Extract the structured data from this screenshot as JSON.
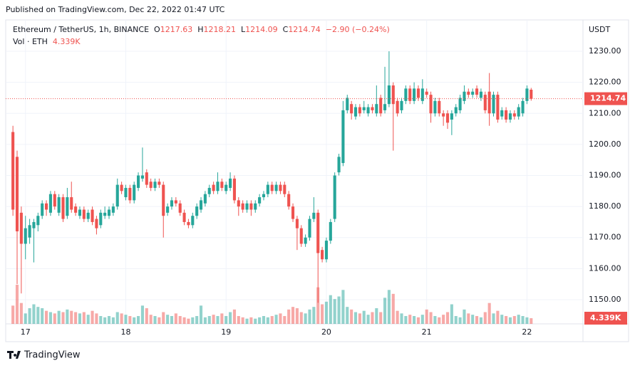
{
  "header": {
    "published": "Published on TradingView.com, Dec 22, 2022 01:47 UTC"
  },
  "footer": {
    "brand": "TradingView"
  },
  "chart_data": {
    "type": "candlestick",
    "symbol": "Ethereum / TetherUS, 1h, BINANCE",
    "ohlc_labels": [
      "O",
      "H",
      "L",
      "C"
    ],
    "change": "−2.90 (−0.24%)",
    "volume_title": "Vol · ETH",
    "y_unit": "USDT",
    "up_color": "#26a69a",
    "down_color": "#ef5350",
    "ylim": [
      1142.2,
      1240.1
    ],
    "yticks": [
      {
        "value": 1150,
        "label": "1150.00"
      },
      {
        "value": 1160,
        "label": "1160.00"
      },
      {
        "value": 1170,
        "label": "1170.00"
      },
      {
        "value": 1180,
        "label": "1180.00"
      },
      {
        "value": 1190,
        "label": "1190.00"
      },
      {
        "value": 1200,
        "label": "1200.00"
      },
      {
        "value": 1210,
        "label": "1210.00"
      },
      {
        "value": 1220,
        "label": "1220.00"
      },
      {
        "value": 1230,
        "label": "1230.00"
      }
    ],
    "xlim": [
      19.27,
      157.4
    ],
    "xticks": [
      {
        "value": 24,
        "label": "17"
      },
      {
        "value": 48,
        "label": "18"
      },
      {
        "value": 72,
        "label": "19"
      },
      {
        "value": 96,
        "label": "20"
      },
      {
        "value": 120,
        "label": "21"
      },
      {
        "value": 144,
        "label": "22"
      }
    ],
    "grid": true,
    "x": [
      21,
      22,
      23,
      24,
      25,
      26,
      27,
      28,
      29,
      30,
      31,
      32,
      33,
      34,
      35,
      36,
      37,
      38,
      39,
      40,
      41,
      42,
      43,
      44,
      45,
      46,
      47,
      48,
      49,
      50,
      51,
      52,
      53,
      54,
      55,
      56,
      57,
      58,
      59,
      60,
      61,
      62,
      63,
      64,
      65,
      66,
      67,
      68,
      69,
      70,
      71,
      72,
      73,
      74,
      75,
      76,
      77,
      78,
      79,
      80,
      81,
      82,
      83,
      84,
      85,
      86,
      87,
      88,
      89,
      90,
      91,
      92,
      93,
      94,
      95,
      96,
      97,
      98,
      99,
      100,
      101,
      102,
      103,
      104,
      105,
      106,
      107,
      108,
      109,
      110,
      111,
      112,
      113,
      114,
      115,
      116,
      117,
      118,
      119,
      120,
      121,
      122,
      123,
      124,
      125,
      126,
      127,
      128,
      129,
      130,
      131,
      132,
      133,
      134,
      135,
      136,
      137,
      138,
      139,
      140,
      141,
      142,
      143,
      144,
      145
    ],
    "open": [
      1204,
      1196,
      1178,
      1168,
      1170,
      1173,
      1174,
      1177,
      1181,
      1178,
      1184,
      1178,
      1183,
      1177,
      1183,
      1180,
      1177,
      1179,
      1176,
      1179,
      1176,
      1174,
      1177,
      1177,
      1178,
      1180,
      1187,
      1183,
      1186,
      1182,
      1186,
      1189,
      1191,
      1188,
      1186,
      1188,
      1187,
      1178,
      1180,
      1182,
      1181,
      1178,
      1175,
      1174,
      1177,
      1179,
      1181,
      1184,
      1187,
      1185,
      1188,
      1185,
      1186,
      1189,
      1182,
      1181,
      1179,
      1181,
      1179,
      1181,
      1183,
      1184,
      1187,
      1185,
      1187,
      1187,
      1184,
      1180,
      1176,
      1173,
      1168,
      1170,
      1176,
      1178,
      1166,
      1163,
      1169,
      1176,
      1191,
      1194,
      1211,
      1213,
      1209,
      1212,
      1211,
      1210,
      1212,
      1210,
      1215,
      1211,
      1213,
      1219,
      1214,
      1211,
      1214,
      1218,
      1214,
      1218,
      1214,
      1217,
      1216,
      1210,
      1214,
      1210,
      1210,
      1208,
      1210,
      1211,
      1214,
      1217,
      1216,
      1218,
      1215,
      1216,
      1217,
      1210,
      1216,
      1209,
      1211,
      1208,
      1210,
      1209,
      1210,
      1214,
      1217.63
    ],
    "high": [
      1206,
      1198,
      1180,
      1177,
      1176,
      1176,
      1178,
      1182,
      1182,
      1185,
      1185,
      1184,
      1184,
      1186,
      1188,
      1181,
      1180,
      1180,
      1179,
      1180,
      1177,
      1179,
      1180,
      1180,
      1181,
      1189,
      1188,
      1187,
      1187,
      1188,
      1191,
      1199,
      1192,
      1189,
      1189,
      1189,
      1188,
      1181,
      1183,
      1183,
      1182,
      1179,
      1176,
      1178,
      1181,
      1183,
      1185,
      1187,
      1188,
      1191,
      1189,
      1188,
      1191,
      1190,
      1183,
      1182,
      1182,
      1182,
      1182,
      1184,
      1185,
      1188,
      1188,
      1188,
      1188,
      1188,
      1185,
      1181,
      1177,
      1174,
      1171,
      1177,
      1183,
      1179,
      1167,
      1170,
      1176,
      1191,
      1197,
      1214,
      1216,
      1214,
      1213,
      1213,
      1214,
      1213,
      1213,
      1219,
      1216,
      1225,
      1230,
      1220,
      1215,
      1215,
      1219,
      1219,
      1220,
      1219,
      1221,
      1218,
      1217,
      1215,
      1215,
      1211,
      1211,
      1211,
      1213,
      1216,
      1219,
      1218,
      1218,
      1219,
      1218,
      1217,
      1223,
      1217,
      1217,
      1212,
      1212,
      1211,
      1211,
      1213,
      1215,
      1219,
      1218.21
    ],
    "low": [
      1177,
      1155,
      1152,
      1163,
      1168,
      1162,
      1172,
      1176,
      1177,
      1177,
      1179,
      1177,
      1175,
      1176,
      1178,
      1177,
      1176,
      1175,
      1175,
      1174,
      1171,
      1173,
      1176,
      1176,
      1177,
      1179,
      1184,
      1182,
      1181,
      1181,
      1185,
      1188,
      1186,
      1185,
      1185,
      1186,
      1170,
      1177,
      1179,
      1180,
      1177,
      1174,
      1173,
      1173,
      1176,
      1178,
      1180,
      1183,
      1184,
      1184,
      1185,
      1184,
      1185,
      1181,
      1177,
      1178,
      1178,
      1177,
      1178,
      1180,
      1182,
      1183,
      1184,
      1184,
      1184,
      1183,
      1179,
      1175,
      1166,
      1167,
      1167,
      1169,
      1175,
      1149,
      1162,
      1162,
      1168,
      1175,
      1190,
      1193,
      1210,
      1208,
      1208,
      1209,
      1210,
      1209,
      1210,
      1209,
      1209,
      1210,
      1212,
      1198,
      1209,
      1210,
      1213,
      1213,
      1213,
      1214,
      1213,
      1215,
      1207,
      1209,
      1209,
      1206,
      1205,
      1203,
      1209,
      1210,
      1213,
      1215,
      1215,
      1215,
      1214,
      1210,
      1206,
      1209,
      1207,
      1208,
      1207,
      1207,
      1208,
      1208,
      1209,
      1213,
      1214.09
    ],
    "close": [
      1179,
      1172,
      1168,
      1173,
      1174,
      1175,
      1177,
      1181,
      1179,
      1184,
      1180,
      1183,
      1176,
      1183,
      1179,
      1178,
      1179,
      1176,
      1178,
      1175,
      1173,
      1178,
      1178,
      1179,
      1180,
      1187,
      1185,
      1186,
      1182,
      1187,
      1190,
      1190,
      1187,
      1186,
      1188,
      1187,
      1177,
      1180,
      1182,
      1181,
      1178,
      1175,
      1174,
      1177,
      1180,
      1182,
      1184,
      1186,
      1185,
      1188,
      1186,
      1187,
      1189,
      1182,
      1180,
      1179,
      1181,
      1179,
      1181,
      1183,
      1184,
      1187,
      1185,
      1187,
      1185,
      1184,
      1180,
      1176,
      1173,
      1168,
      1170,
      1176,
      1178,
      1165,
      1163,
      1169,
      1175,
      1190,
      1196,
      1211,
      1215,
      1210,
      1212,
      1210,
      1212,
      1212,
      1211,
      1213,
      1210,
      1213,
      1219,
      1213,
      1210,
      1214,
      1218,
      1214,
      1218,
      1215,
      1218,
      1216,
      1210,
      1214,
      1210,
      1209,
      1207,
      1210,
      1212,
      1215,
      1217,
      1216,
      1217,
      1216,
      1217,
      1211,
      1210,
      1216,
      1208,
      1211,
      1208,
      1210,
      1209,
      1212,
      1214,
      1218,
      1214.74
    ],
    "volume": [
      14000,
      30000,
      16000,
      8000,
      12000,
      15000,
      13000,
      12000,
      10000,
      9000,
      8000,
      10000,
      9000,
      11000,
      10000,
      9000,
      8000,
      9000,
      7000,
      10000,
      8000,
      6000,
      5000,
      6000,
      5000,
      9000,
      8000,
      7000,
      6000,
      5000,
      6000,
      14000,
      12000,
      7000,
      6000,
      5000,
      9000,
      7000,
      6000,
      8000,
      6000,
      5000,
      4000,
      5000,
      6000,
      14000,
      5000,
      6000,
      7000,
      6000,
      8000,
      6000,
      9000,
      11000,
      6000,
      5000,
      4000,
      5000,
      4000,
      5000,
      6000,
      5000,
      6000,
      7000,
      8000,
      6000,
      11000,
      13000,
      12000,
      9000,
      8000,
      11000,
      13000,
      28000,
      15000,
      17000,
      22000,
      19000,
      21000,
      26000,
      13000,
      11000,
      9000,
      8000,
      10000,
      7000,
      9000,
      12000,
      9000,
      20000,
      26000,
      23000,
      10000,
      8000,
      6000,
      7000,
      6000,
      5000,
      7000,
      11000,
      9000,
      6000,
      5000,
      7000,
      9000,
      15000,
      6000,
      5000,
      11000,
      8000,
      7000,
      6000,
      5000,
      9000,
      16000,
      8000,
      10000,
      7000,
      6000,
      5000,
      6000,
      7000,
      6000,
      5000,
      4339
    ],
    "value_labels": {
      "volume_last": "4.339K"
    }
  }
}
